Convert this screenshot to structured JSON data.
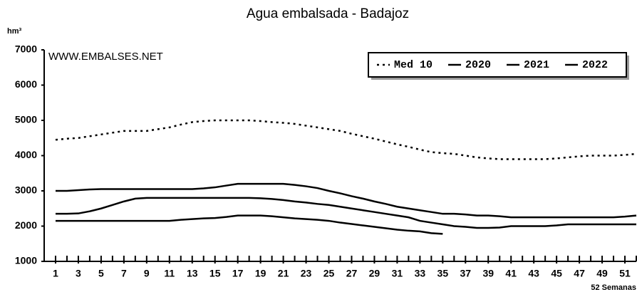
{
  "chart_data": {
    "type": "line",
    "title": "Agua embalsada - Badajoz",
    "y_label": "hm³",
    "x_label": "52 Semanas",
    "watermark": "WWW.EMBALSES.NET",
    "x": [
      1,
      2,
      3,
      4,
      5,
      6,
      7,
      8,
      9,
      10,
      11,
      12,
      13,
      14,
      15,
      16,
      17,
      18,
      19,
      20,
      21,
      22,
      23,
      24,
      25,
      26,
      27,
      28,
      29,
      30,
      31,
      32,
      33,
      34,
      35,
      36,
      37,
      38,
      39,
      40,
      41,
      42,
      43,
      44,
      45,
      46,
      47,
      48,
      49,
      50,
      51,
      52
    ],
    "xlim": [
      0,
      52
    ],
    "xticks": [
      1,
      3,
      5,
      7,
      9,
      11,
      13,
      15,
      17,
      19,
      21,
      23,
      25,
      27,
      29,
      31,
      33,
      35,
      37,
      39,
      41,
      43,
      45,
      47,
      49,
      51
    ],
    "ylim": [
      1000,
      7000
    ],
    "yticks": [
      1000,
      2000,
      3000,
      4000,
      5000,
      6000,
      7000
    ],
    "grid": false,
    "legend": "top-right",
    "series": [
      {
        "name": "Med 10",
        "color": "#000000",
        "style": "dotted",
        "values": [
          4450,
          4480,
          4500,
          4550,
          4600,
          4650,
          4700,
          4700,
          4700,
          4750,
          4800,
          4880,
          4950,
          4980,
          5000,
          5000,
          5000,
          5000,
          4980,
          4950,
          4930,
          4900,
          4850,
          4800,
          4750,
          4700,
          4620,
          4550,
          4480,
          4400,
          4320,
          4250,
          4170,
          4100,
          4070,
          4050,
          4000,
          3950,
          3920,
          3900,
          3900,
          3900,
          3900,
          3900,
          3920,
          3950,
          3980,
          4000,
          4000,
          4000,
          4020,
          4050
        ]
      },
      {
        "name": "2020",
        "color": "#000000",
        "style": "solid",
        "values": [
          3000,
          3000,
          3020,
          3040,
          3050,
          3050,
          3050,
          3050,
          3050,
          3050,
          3050,
          3050,
          3050,
          3070,
          3100,
          3150,
          3200,
          3200,
          3200,
          3200,
          3200,
          3170,
          3130,
          3080,
          3000,
          2930,
          2850,
          2780,
          2700,
          2630,
          2550,
          2500,
          2450,
          2400,
          2350,
          2350,
          2330,
          2300,
          2300,
          2280,
          2250,
          2250,
          2250,
          2250,
          2250,
          2250,
          2250,
          2250,
          2250,
          2250,
          2270,
          2300
        ]
      },
      {
        "name": "2021",
        "color": "#000000",
        "style": "solid",
        "values": [
          2350,
          2350,
          2360,
          2420,
          2500,
          2600,
          2700,
          2780,
          2800,
          2800,
          2800,
          2800,
          2800,
          2800,
          2800,
          2800,
          2800,
          2800,
          2790,
          2770,
          2740,
          2700,
          2670,
          2630,
          2600,
          2550,
          2500,
          2450,
          2400,
          2350,
          2300,
          2250,
          2150,
          2100,
          2050,
          2000,
          1980,
          1950,
          1950,
          1960,
          2000,
          2000,
          2000,
          2000,
          2020,
          2050,
          2050,
          2050,
          2050,
          2050,
          2050,
          2050
        ]
      },
      {
        "name": "2022",
        "color": "#000000",
        "style": "solid",
        "values": [
          2150,
          2150,
          2150,
          2150,
          2150,
          2150,
          2150,
          2150,
          2150,
          2150,
          2150,
          2180,
          2200,
          2220,
          2230,
          2260,
          2300,
          2300,
          2300,
          2280,
          2250,
          2220,
          2200,
          2180,
          2150,
          2100,
          2060,
          2020,
          1980,
          1940,
          1900,
          1870,
          1850,
          1800,
          1780,
          null,
          null,
          null,
          null,
          null,
          null,
          null,
          null,
          null,
          null,
          null,
          null,
          null,
          null,
          null,
          null,
          null
        ]
      }
    ]
  }
}
